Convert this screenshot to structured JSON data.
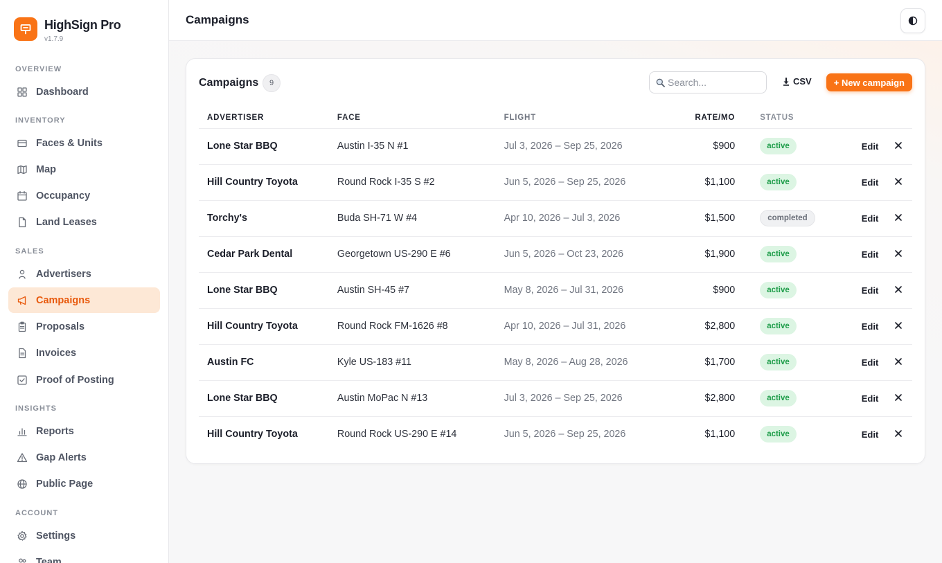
{
  "app": {
    "name": "HighSign Pro",
    "version": "v1.7.9"
  },
  "sidebar": {
    "sections": [
      {
        "title": "Overview",
        "items": [
          {
            "label": "Dashboard",
            "icon": "dashboard-icon"
          }
        ]
      },
      {
        "title": "Inventory",
        "items": [
          {
            "label": "Faces & Units",
            "icon": "faces-icon"
          },
          {
            "label": "Map",
            "icon": "map-icon"
          },
          {
            "label": "Occupancy",
            "icon": "calendar-icon"
          },
          {
            "label": "Land Leases",
            "icon": "document-icon"
          }
        ]
      },
      {
        "title": "Sales",
        "items": [
          {
            "label": "Advertisers",
            "icon": "person-icon"
          },
          {
            "label": "Campaigns",
            "icon": "megaphone-icon",
            "active": true
          },
          {
            "label": "Proposals",
            "icon": "clipboard-icon"
          },
          {
            "label": "Invoices",
            "icon": "invoice-icon"
          },
          {
            "label": "Proof of Posting",
            "icon": "checkbox-icon"
          }
        ]
      },
      {
        "title": "Insights",
        "items": [
          {
            "label": "Reports",
            "icon": "bar-chart-icon"
          },
          {
            "label": "Gap Alerts",
            "icon": "alert-icon"
          },
          {
            "label": "Public Page",
            "icon": "globe-icon"
          }
        ]
      },
      {
        "title": "Account",
        "items": [
          {
            "label": "Settings",
            "icon": "gear-icon"
          },
          {
            "label": "Team",
            "icon": "team-icon"
          }
        ]
      }
    ]
  },
  "header": {
    "title": "Campaigns"
  },
  "card": {
    "title": "Campaigns",
    "count": "9",
    "search_placeholder": "Search...",
    "csv_label": "CSV",
    "new_label": "+ New campaign",
    "columns": [
      "Advertiser",
      "Face",
      "Flight",
      "Rate/mo",
      "Status"
    ],
    "edit_label": "Edit",
    "rows": [
      {
        "advertiser": "Lone Star BBQ",
        "face": "Austin I-35 N #1",
        "flight": "Jul 3, 2026 – Sep 25, 2026",
        "rate": "$900",
        "status": "active"
      },
      {
        "advertiser": "Hill Country Toyota",
        "face": "Round Rock I-35 S #2",
        "flight": "Jun 5, 2026 – Sep 25, 2026",
        "rate": "$1,100",
        "status": "active"
      },
      {
        "advertiser": "Torchy's",
        "face": "Buda SH-71 W #4",
        "flight": "Apr 10, 2026 – Jul 3, 2026",
        "rate": "$1,500",
        "status": "completed"
      },
      {
        "advertiser": "Cedar Park Dental",
        "face": "Georgetown US-290 E #6",
        "flight": "Jun 5, 2026 – Oct 23, 2026",
        "rate": "$1,900",
        "status": "active"
      },
      {
        "advertiser": "Lone Star BBQ",
        "face": "Austin SH-45 #7",
        "flight": "May 8, 2026 – Jul 31, 2026",
        "rate": "$900",
        "status": "active"
      },
      {
        "advertiser": "Hill Country Toyota",
        "face": "Round Rock FM-1626 #8",
        "flight": "Apr 10, 2026 – Jul 31, 2026",
        "rate": "$2,800",
        "status": "active"
      },
      {
        "advertiser": "Austin FC",
        "face": "Kyle US-183 #11",
        "flight": "May 8, 2026 – Aug 28, 2026",
        "rate": "$1,700",
        "status": "active"
      },
      {
        "advertiser": "Lone Star BBQ",
        "face": "Austin MoPac N #13",
        "flight": "Jul 3, 2026 – Sep 25, 2026",
        "rate": "$2,800",
        "status": "active"
      },
      {
        "advertiser": "Hill Country Toyota",
        "face": "Round Rock US-290 E #14",
        "flight": "Jun 5, 2026 – Sep 25, 2026",
        "rate": "$1,100",
        "status": "active"
      }
    ]
  },
  "colors": {
    "accent": "#f97316",
    "active_bg": "#fde8d6",
    "status_active": "#1f9d4a"
  }
}
